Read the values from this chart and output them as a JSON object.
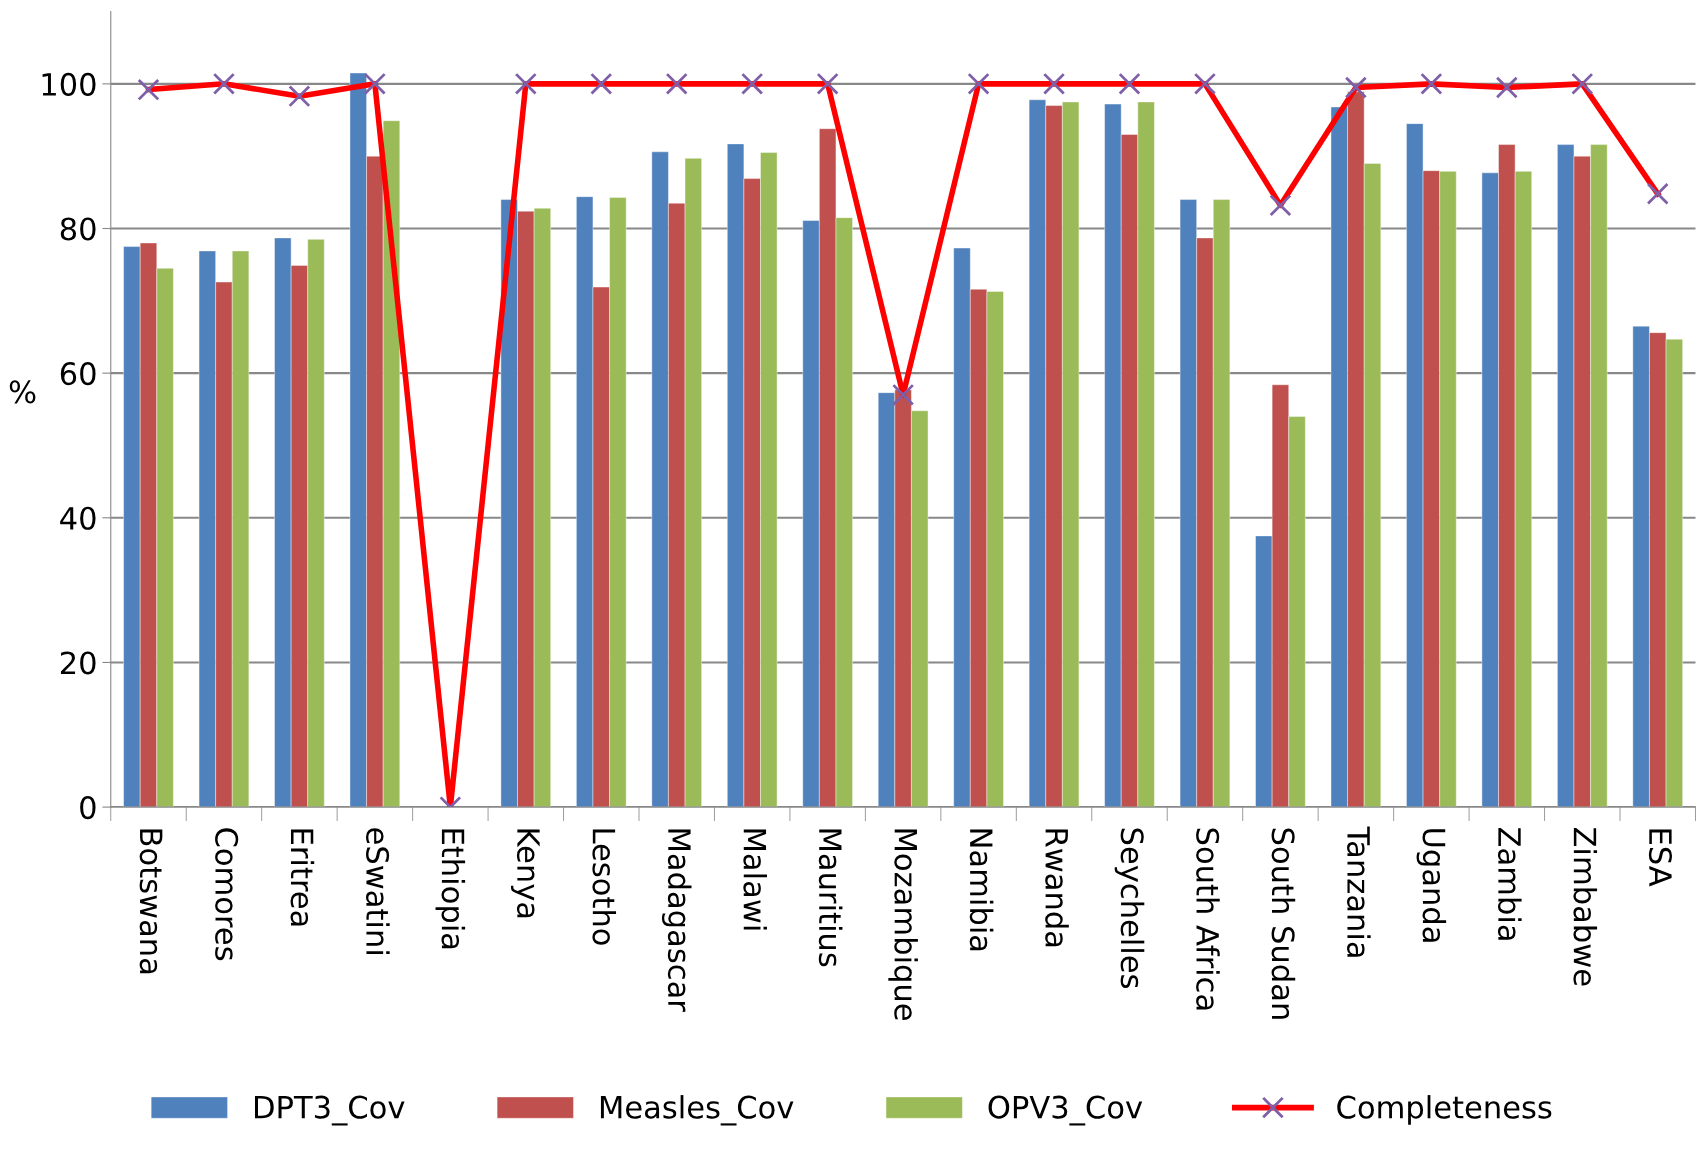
{
  "chart_data": {
    "type": "bar",
    "ylabel": "%",
    "categories": [
      "Botswana",
      "Comores",
      "Eritrea",
      "eSwatini",
      "Ethiopia",
      "Kenya",
      "Lesotho",
      "Madagascar",
      "Malawi",
      "Mauritius",
      "Mozambique",
      "Namibia",
      "Rwanda",
      "Seychelles",
      "South Africa",
      "South Sudan",
      "Tanzania",
      "Uganda",
      "Zambia",
      "Zimbabwe",
      "ESA"
    ],
    "series": [
      {
        "name": "DPT3_Cov",
        "color": "#4f81bd",
        "values": [
          77.5,
          76.9,
          78.7,
          101.5,
          null,
          84.0,
          84.4,
          90.6,
          91.7,
          81.1,
          57.3,
          77.3,
          97.8,
          97.2,
          84.0,
          37.5,
          96.8,
          94.5,
          87.7,
          91.6,
          66.5
        ]
      },
      {
        "name": "Measles_Cov",
        "color": "#c0504d",
        "values": [
          78.0,
          72.6,
          74.9,
          90.0,
          null,
          82.4,
          71.9,
          83.5,
          86.9,
          93.8,
          57.7,
          71.6,
          97.0,
          93.0,
          78.7,
          58.4,
          98.9,
          88.0,
          91.6,
          90.0,
          65.6
        ]
      },
      {
        "name": "OPV3_Cov",
        "color": "#9bbb59",
        "values": [
          74.5,
          76.9,
          78.5,
          94.9,
          null,
          82.8,
          84.3,
          89.7,
          90.5,
          81.5,
          54.8,
          71.3,
          97.5,
          97.5,
          84.0,
          54.0,
          89.0,
          87.9,
          87.9,
          91.6,
          64.7
        ]
      },
      {
        "name": "Completeness",
        "type": "line",
        "color": "#ff0000",
        "marker": "cross",
        "line_style": "solid",
        "values": [
          99.2,
          100,
          98.3,
          100,
          0,
          100,
          100,
          100,
          100,
          100,
          57,
          100,
          100,
          100,
          100,
          83.2,
          99.5,
          100,
          99.5,
          100,
          84.8
        ]
      }
    ],
    "ylim": [
      0,
      110
    ],
    "yticks": [
      0,
      20,
      40,
      60,
      80,
      100
    ],
    "grid": "y",
    "legend": "bottom"
  }
}
